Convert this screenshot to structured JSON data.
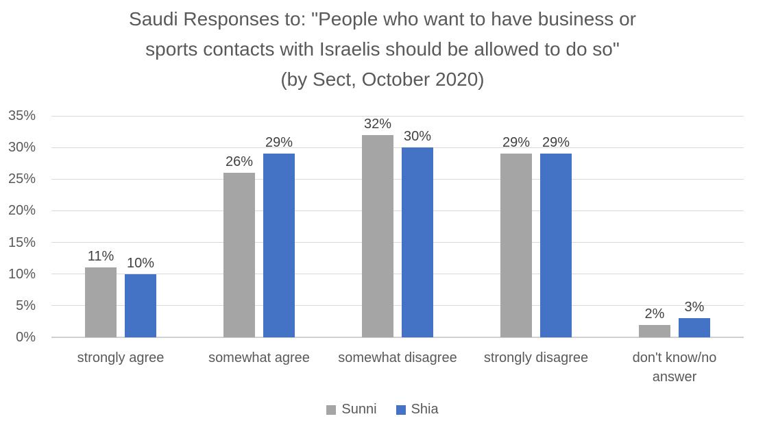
{
  "chart_data": {
    "type": "bar",
    "title": "Saudi Responses to: \"People who want to have business or sports contacts with Israelis should be allowed to do so\" (by Sect, October 2020)",
    "title_lines": [
      "Saudi Responses to: \"People who want to have business or",
      "sports contacts with Israelis should be allowed to do so\"",
      "(by Sect, October 2020)"
    ],
    "categories": [
      "strongly agree",
      "somewhat agree",
      "somewhat disagree",
      "strongly disagree",
      "don't know/no answer"
    ],
    "category_lines": [
      [
        "strongly agree"
      ],
      [
        "somewhat agree"
      ],
      [
        "somewhat disagree"
      ],
      [
        "strongly disagree"
      ],
      [
        "don't know/no",
        "answer"
      ]
    ],
    "series": [
      {
        "name": "Sunni",
        "color": "#A5A5A5",
        "values": [
          11,
          26,
          32,
          29,
          2
        ]
      },
      {
        "name": "Shia",
        "color": "#4472C4",
        "values": [
          10,
          29,
          30,
          29,
          3
        ]
      }
    ],
    "data_label_suffix": "%",
    "ylim": [
      0,
      35
    ],
    "ytick_step": 5,
    "yticks": [
      "0%",
      "5%",
      "10%",
      "15%",
      "20%",
      "25%",
      "30%",
      "35%"
    ],
    "grid": true,
    "legend_position": "bottom",
    "colors": {
      "grid": "#D9D9D9",
      "axis_line": "#D0D0D0",
      "title_text": "#595959",
      "axis_text": "#595959",
      "data_label_text": "#404040",
      "background": "#FFFFFF"
    }
  }
}
